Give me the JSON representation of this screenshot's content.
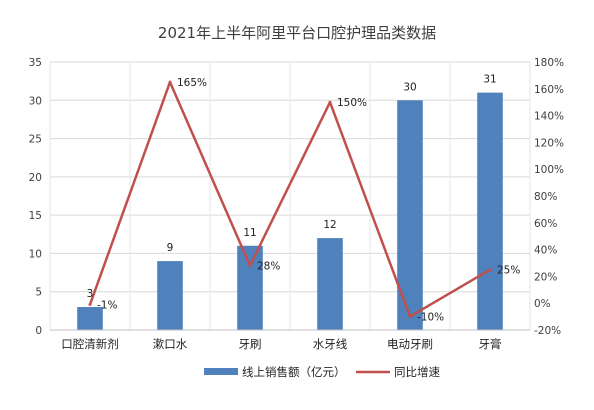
{
  "chart_data": {
    "type": "bar",
    "title": "2021年上半年阿里平台口腔护理品类数据",
    "categories": [
      "口腔清新剂",
      "漱口水",
      "牙刷",
      "水牙线",
      "电动牙刷",
      "牙膏"
    ],
    "y_left": {
      "min": 0,
      "max": 35,
      "step": 5,
      "ticks": [
        "0",
        "5",
        "10",
        "15",
        "20",
        "25",
        "30",
        "35"
      ]
    },
    "y_right": {
      "min": -20,
      "max": 180,
      "step": 20,
      "ticks": [
        "-20%",
        "0%",
        "20%",
        "40%",
        "60%",
        "80%",
        "100%",
        "120%",
        "140%",
        "160%",
        "180%"
      ]
    },
    "grid": true,
    "legend_position": "bottom",
    "series": [
      {
        "name": "线上销售额（亿元）",
        "type": "bar",
        "axis": "left",
        "color": "#4f81bd",
        "values": [
          3,
          9,
          11,
          12,
          30,
          31
        ],
        "labels": [
          "3",
          "9",
          "11",
          "12",
          "30",
          "31"
        ]
      },
      {
        "name": "同比增速",
        "type": "line",
        "axis": "right",
        "color": "#c0504d",
        "values": [
          -1,
          165,
          28,
          150,
          -10,
          25
        ],
        "labels": [
          "-1%",
          "165%",
          "28%",
          "150%",
          "-10%",
          "25%"
        ]
      }
    ]
  }
}
